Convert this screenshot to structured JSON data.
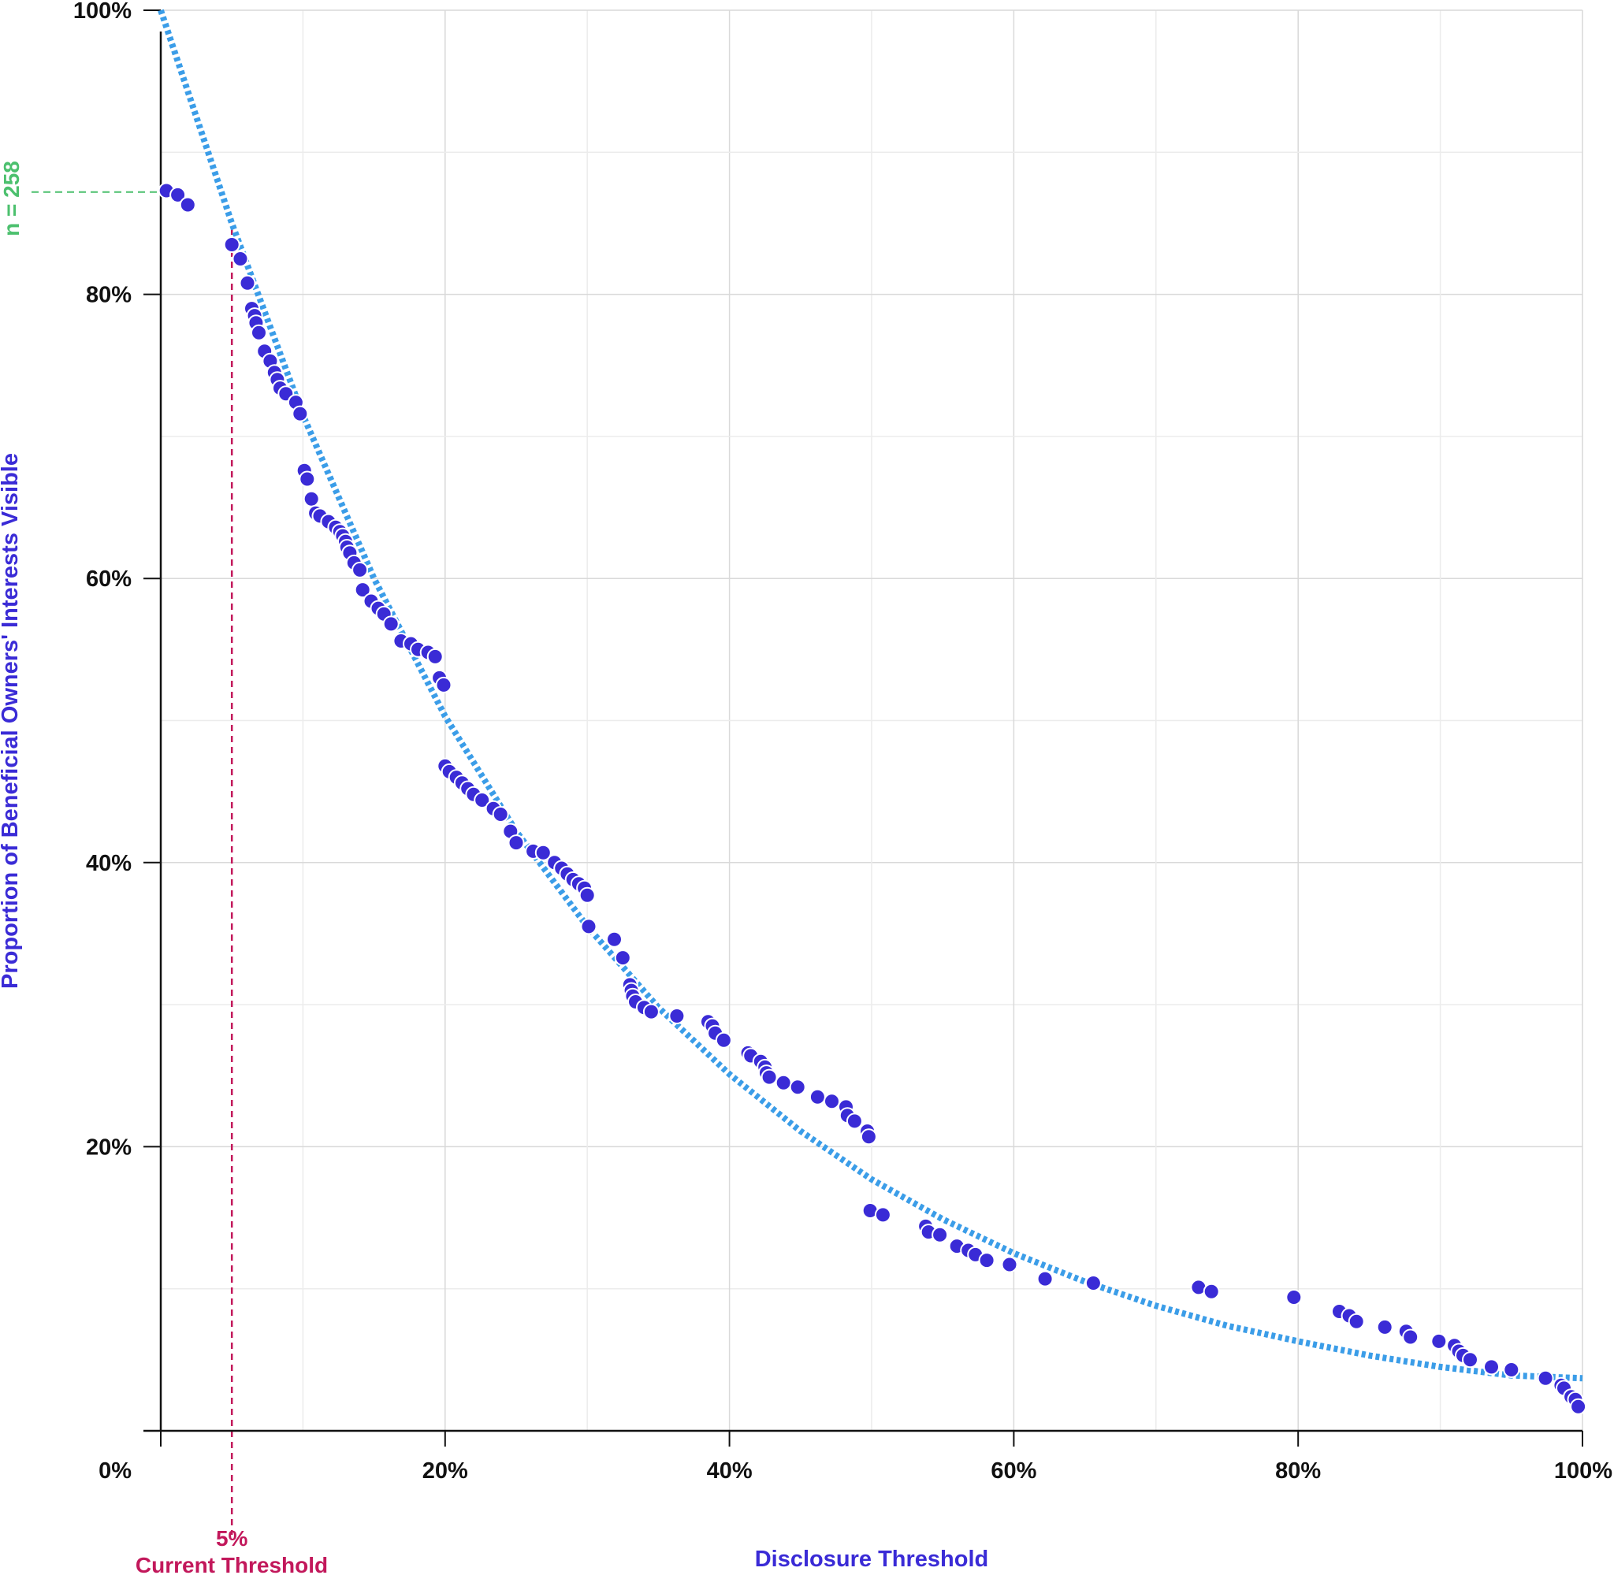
{
  "colors": {
    "points": "#3a2bd6",
    "point_stroke": "#ffffff",
    "trend": "#3b9de8",
    "threshold": "#c2185b",
    "n_marker": "#4cc06e",
    "axis_titles": "#3a2bd6",
    "grid_major": "#d9d9d9",
    "grid_minor": "#ececec"
  },
  "annotations": {
    "n_label": "n = 258",
    "threshold_value": "5%",
    "threshold_label": "Current Threshold"
  },
  "chart_data": {
    "type": "scatter",
    "title": "",
    "xlabel": "Disclosure Threshold",
    "ylabel": "Proportion of Beneficial Owners' Interests Visible",
    "xlim": [
      0,
      100
    ],
    "ylim": [
      0,
      100
    ],
    "x_ticks": [
      0,
      20,
      40,
      60,
      80,
      100
    ],
    "x_tick_labels": [
      "0%",
      "20%",
      "40%",
      "60%",
      "80%",
      "100%"
    ],
    "y_ticks": [
      20,
      40,
      60,
      80,
      100
    ],
    "y_tick_labels": [
      "20%",
      "40%",
      "60%",
      "80%",
      "100%"
    ],
    "grid": true,
    "threshold_x": 5,
    "n_line_y": 87.2,
    "trend": {
      "style": "dotted",
      "points": [
        [
          0,
          100
        ],
        [
          5,
          85
        ],
        [
          10,
          71.5
        ],
        [
          15,
          60
        ],
        [
          20,
          50.3
        ],
        [
          25,
          42.2
        ],
        [
          30,
          35.5
        ],
        [
          35,
          29.8
        ],
        [
          40,
          25.1
        ],
        [
          45,
          21.1
        ],
        [
          50,
          17.7
        ],
        [
          55,
          14.9
        ],
        [
          60,
          12.5
        ],
        [
          65,
          10.5
        ],
        [
          70,
          8.8
        ],
        [
          75,
          7.4
        ],
        [
          80,
          6.3
        ],
        [
          85,
          5.3
        ],
        [
          90,
          4.5
        ],
        [
          95,
          3.9
        ],
        [
          100,
          3.7
        ]
      ]
    },
    "points": [
      [
        0.4,
        87.3
      ],
      [
        1.2,
        87.0
      ],
      [
        1.9,
        86.3
      ],
      [
        5.0,
        83.5
      ],
      [
        5.6,
        82.5
      ],
      [
        6.1,
        80.8
      ],
      [
        6.4,
        79.0
      ],
      [
        6.6,
        78.5
      ],
      [
        6.7,
        78.0
      ],
      [
        6.9,
        77.3
      ],
      [
        7.3,
        76.0
      ],
      [
        7.7,
        75.3
      ],
      [
        8.0,
        74.5
      ],
      [
        8.2,
        74.0
      ],
      [
        8.4,
        73.4
      ],
      [
        8.8,
        73.0
      ],
      [
        9.5,
        72.4
      ],
      [
        9.8,
        71.6
      ],
      [
        10.1,
        67.6
      ],
      [
        10.3,
        67.0
      ],
      [
        10.6,
        65.6
      ],
      [
        10.9,
        64.6
      ],
      [
        11.2,
        64.4
      ],
      [
        11.8,
        64.0
      ],
      [
        12.3,
        63.6
      ],
      [
        12.6,
        63.3
      ],
      [
        12.8,
        63.0
      ],
      [
        13.0,
        62.6
      ],
      [
        13.1,
        62.2
      ],
      [
        13.3,
        61.8
      ],
      [
        13.6,
        61.1
      ],
      [
        14.0,
        60.6
      ],
      [
        14.2,
        59.2
      ],
      [
        14.8,
        58.4
      ],
      [
        15.3,
        57.9
      ],
      [
        15.7,
        57.5
      ],
      [
        16.2,
        56.8
      ],
      [
        16.9,
        55.6
      ],
      [
        17.6,
        55.4
      ],
      [
        18.1,
        55.0
      ],
      [
        18.8,
        54.8
      ],
      [
        19.3,
        54.5
      ],
      [
        19.6,
        53.0
      ],
      [
        19.9,
        52.5
      ],
      [
        20.0,
        46.8
      ],
      [
        20.3,
        46.4
      ],
      [
        20.8,
        46.0
      ],
      [
        21.2,
        45.6
      ],
      [
        21.6,
        45.2
      ],
      [
        22.0,
        44.8
      ],
      [
        22.6,
        44.4
      ],
      [
        23.4,
        43.8
      ],
      [
        23.9,
        43.4
      ],
      [
        24.6,
        42.2
      ],
      [
        25.0,
        41.4
      ],
      [
        26.2,
        40.8
      ],
      [
        26.9,
        40.7
      ],
      [
        27.7,
        40.0
      ],
      [
        28.2,
        39.6
      ],
      [
        28.6,
        39.2
      ],
      [
        29.0,
        38.8
      ],
      [
        29.4,
        38.5
      ],
      [
        29.8,
        38.2
      ],
      [
        30.0,
        37.7
      ],
      [
        30.1,
        35.5
      ],
      [
        31.9,
        34.6
      ],
      [
        32.5,
        33.3
      ],
      [
        33.0,
        31.4
      ],
      [
        33.1,
        31.0
      ],
      [
        33.2,
        30.6
      ],
      [
        33.4,
        30.2
      ],
      [
        34.0,
        29.8
      ],
      [
        34.5,
        29.5
      ],
      [
        36.3,
        29.2
      ],
      [
        38.5,
        28.8
      ],
      [
        38.8,
        28.5
      ],
      [
        39.0,
        28.0
      ],
      [
        39.6,
        27.5
      ],
      [
        41.3,
        26.6
      ],
      [
        41.5,
        26.4
      ],
      [
        42.2,
        26.0
      ],
      [
        42.5,
        25.6
      ],
      [
        42.6,
        25.2
      ],
      [
        42.8,
        24.9
      ],
      [
        43.8,
        24.5
      ],
      [
        44.8,
        24.2
      ],
      [
        46.2,
        23.5
      ],
      [
        47.2,
        23.2
      ],
      [
        48.2,
        22.8
      ],
      [
        48.3,
        22.2
      ],
      [
        48.8,
        21.8
      ],
      [
        49.7,
        21.1
      ],
      [
        49.8,
        20.7
      ],
      [
        49.9,
        15.5
      ],
      [
        50.8,
        15.2
      ],
      [
        53.8,
        14.4
      ],
      [
        54.0,
        14.0
      ],
      [
        54.8,
        13.8
      ],
      [
        56.0,
        13.0
      ],
      [
        56.8,
        12.7
      ],
      [
        57.3,
        12.4
      ],
      [
        58.1,
        12.0
      ],
      [
        59.7,
        11.7
      ],
      [
        62.2,
        10.7
      ],
      [
        65.6,
        10.4
      ],
      [
        73.0,
        10.1
      ],
      [
        73.9,
        9.8
      ],
      [
        79.7,
        9.4
      ],
      [
        82.9,
        8.4
      ],
      [
        83.6,
        8.1
      ],
      [
        84.1,
        7.7
      ],
      [
        86.1,
        7.3
      ],
      [
        87.6,
        7.0
      ],
      [
        87.9,
        6.6
      ],
      [
        89.9,
        6.3
      ],
      [
        91.0,
        6.0
      ],
      [
        91.3,
        5.6
      ],
      [
        91.6,
        5.3
      ],
      [
        92.1,
        5.0
      ],
      [
        93.6,
        4.5
      ],
      [
        95.0,
        4.3
      ],
      [
        97.4,
        3.7
      ],
      [
        98.5,
        3.2
      ],
      [
        98.7,
        3.0
      ],
      [
        99.2,
        2.4
      ],
      [
        99.5,
        2.2
      ],
      [
        99.7,
        1.7
      ]
    ]
  }
}
